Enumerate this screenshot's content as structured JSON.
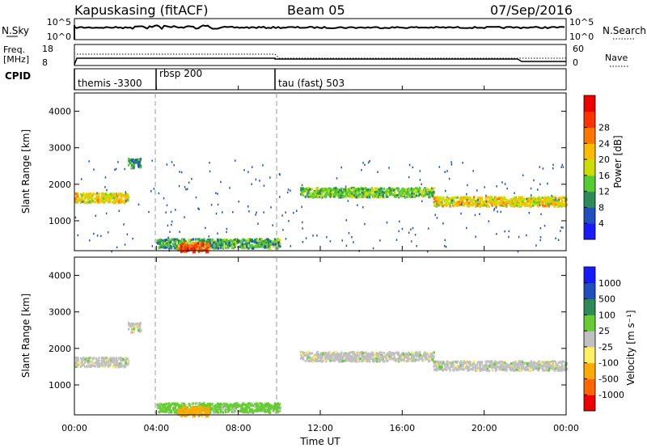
{
  "header": {
    "station": "Kapuskasing (fitACF)",
    "beam": "Beam 05",
    "date": "07/Sep/2016"
  },
  "sky_panel": {
    "left_label": "N.Sky",
    "left_ticks": [
      "10^5",
      "10^0"
    ],
    "right_ticks": [
      "10^5",
      "10^0"
    ],
    "right_label": "N.Search"
  },
  "freq_panel": {
    "left_label_1": "Freq.",
    "left_label_2": "[MHz]",
    "left_ticks": [
      "18",
      "8"
    ],
    "right_ticks": [
      "60",
      "0"
    ],
    "right_label": "Nave"
  },
  "cpid_panel": {
    "label": "CPID",
    "programs": [
      {
        "name": "themis -3300",
        "start_hour": 0
      },
      {
        "name": "rbsp 200",
        "start_hour": 4
      },
      {
        "name": "tau (fast) 503",
        "start_hour": 10
      }
    ]
  },
  "power_panel": {
    "ylabel": "Slant Range [km]",
    "yticks": [
      "1000",
      "2000",
      "3000",
      "4000"
    ],
    "cbar_label": "Power [dB]",
    "cbar_ticks": [
      "4",
      "8",
      "12",
      "16",
      "20",
      "24",
      "28"
    ],
    "cbar_colors": [
      "#1a1aff",
      "#2050c0",
      "#2e8b57",
      "#55cc33",
      "#ccdd00",
      "#ffbb00",
      "#ff7700",
      "#ff3300",
      "#ee0000"
    ]
  },
  "velocity_panel": {
    "ylabel": "Slant Range [km]",
    "yticks": [
      "1000",
      "2000",
      "3000",
      "4000"
    ],
    "cbar_label": "Velocity [m s⁻¹]",
    "cbar_ticks": [
      "-1000",
      "-500",
      "-100",
      "-25",
      "25",
      "100",
      "500",
      "1000"
    ],
    "cbar_colors": [
      "#ee0000",
      "#ff6600",
      "#ffaa00",
      "#ffee66",
      "#c0c0c0",
      "#66cc33",
      "#2e8b57",
      "#2050c0",
      "#1a1aff"
    ]
  },
  "time_axis": {
    "label": "Time UT",
    "ticks": [
      "00:00",
      "04:00",
      "08:00",
      "12:00",
      "16:00",
      "20:00",
      "00:00"
    ]
  },
  "chart_data": {
    "type": "heatmap",
    "x_range_hours": [
      0,
      24
    ],
    "y_range_km": [
      180,
      4500
    ],
    "range_bands": [
      {
        "start": 0.0,
        "end": 2.6,
        "range_km": 1650,
        "power_db": 20,
        "velocity": 0
      },
      {
        "start": 2.6,
        "end": 3.2,
        "range_km": 2600,
        "power_db": 10,
        "velocity": 0
      },
      {
        "start": 4.0,
        "end": 10.0,
        "range_km": 400,
        "power_db": 12,
        "velocity": 50
      },
      {
        "start": 5.0,
        "end": 6.5,
        "range_km": 300,
        "power_db": 28,
        "velocity": -200
      },
      {
        "start": 11.0,
        "end": 17.5,
        "range_km": 1800,
        "power_db": 14,
        "velocity": 0
      },
      {
        "start": 17.5,
        "end": 24.0,
        "range_km": 1550,
        "power_db": 20,
        "velocity": 0
      }
    ]
  }
}
